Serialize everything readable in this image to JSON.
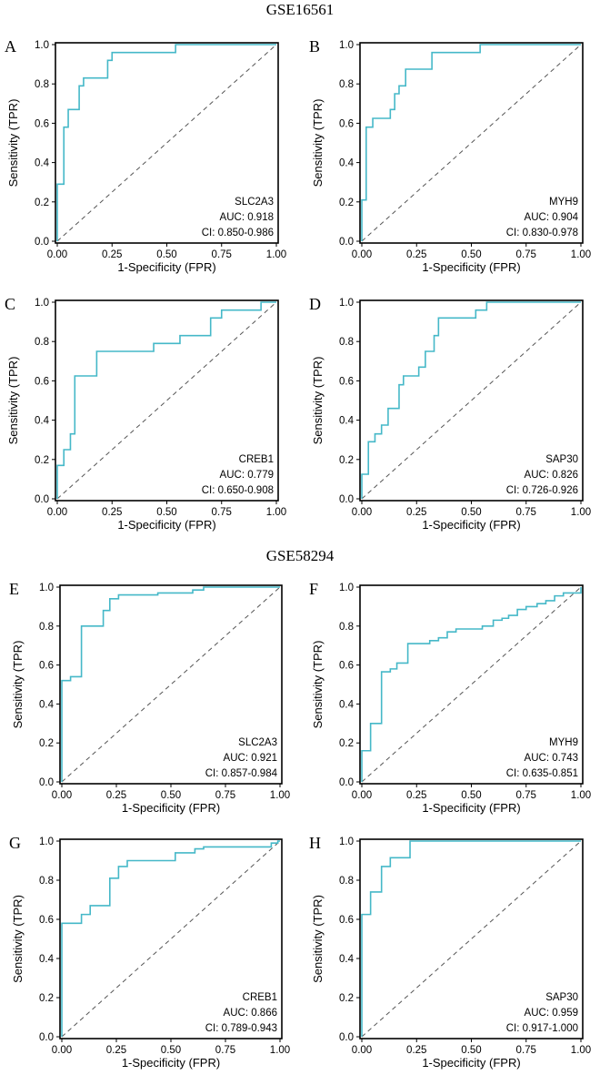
{
  "colors": {
    "curve": "#45b8c8",
    "diagonal": "#555555",
    "axis": "#000000"
  },
  "titles": [
    "GSE16561",
    "GSE58294"
  ],
  "chart_data": [
    {
      "type": "line",
      "panel": "A",
      "dataset": "GSE16561",
      "gene": "SLC2A3",
      "auc": "AUC: 0.918",
      "ci": "CI: 0.850-0.986",
      "xlabel": "1-Specificity (FPR)",
      "ylabel": "Sensitivity (TPR)",
      "xlim": [
        0,
        1
      ],
      "ylim": [
        0,
        1
      ],
      "xticks": [
        "0.00",
        "0.25",
        "0.50",
        "0.75",
        "1.00"
      ],
      "yticks": [
        "0.0",
        "0.2",
        "0.4",
        "0.6",
        "0.8",
        "1.0"
      ],
      "points": [
        [
          0,
          0
        ],
        [
          0,
          0.29
        ],
        [
          0.03,
          0.29
        ],
        [
          0.03,
          0.58
        ],
        [
          0.05,
          0.58
        ],
        [
          0.05,
          0.67
        ],
        [
          0.1,
          0.67
        ],
        [
          0.1,
          0.79
        ],
        [
          0.12,
          0.79
        ],
        [
          0.12,
          0.83
        ],
        [
          0.23,
          0.83
        ],
        [
          0.23,
          0.92
        ],
        [
          0.25,
          0.92
        ],
        [
          0.25,
          0.96
        ],
        [
          0.54,
          0.96
        ],
        [
          0.54,
          1
        ],
        [
          1,
          1
        ]
      ]
    },
    {
      "type": "line",
      "panel": "B",
      "dataset": "GSE16561",
      "gene": "MYH9",
      "auc": "AUC: 0.904",
      "ci": "CI: 0.830-0.978",
      "xlabel": "1-Specificity (FPR)",
      "ylabel": "Sensitivity (TPR)",
      "xlim": [
        0,
        1
      ],
      "ylim": [
        0,
        1
      ],
      "xticks": [
        "0.00",
        "0.25",
        "0.50",
        "0.75",
        "1.00"
      ],
      "yticks": [
        "0.0",
        "0.2",
        "0.4",
        "0.6",
        "0.8",
        "1.0"
      ],
      "points": [
        [
          0,
          0
        ],
        [
          0,
          0.21
        ],
        [
          0.02,
          0.21
        ],
        [
          0.02,
          0.58
        ],
        [
          0.05,
          0.58
        ],
        [
          0.05,
          0.625
        ],
        [
          0.13,
          0.625
        ],
        [
          0.13,
          0.67
        ],
        [
          0.15,
          0.67
        ],
        [
          0.15,
          0.75
        ],
        [
          0.17,
          0.75
        ],
        [
          0.17,
          0.79
        ],
        [
          0.2,
          0.79
        ],
        [
          0.2,
          0.875
        ],
        [
          0.32,
          0.875
        ],
        [
          0.32,
          0.96
        ],
        [
          0.54,
          0.96
        ],
        [
          0.54,
          1
        ],
        [
          1,
          1
        ]
      ]
    },
    {
      "type": "line",
      "panel": "C",
      "dataset": "GSE16561",
      "gene": "CREB1",
      "auc": "AUC: 0.779",
      "ci": "CI: 0.650-0.908",
      "xlabel": "1-Specificity (FPR)",
      "ylabel": "Sensitivity (TPR)",
      "xlim": [
        0,
        1
      ],
      "ylim": [
        0,
        1
      ],
      "xticks": [
        "0.00",
        "0.25",
        "0.50",
        "0.75",
        "1.00"
      ],
      "yticks": [
        "0.0",
        "0.2",
        "0.4",
        "0.6",
        "0.8",
        "1.0"
      ],
      "points": [
        [
          0,
          0
        ],
        [
          0,
          0.17
        ],
        [
          0.03,
          0.17
        ],
        [
          0.03,
          0.25
        ],
        [
          0.06,
          0.25
        ],
        [
          0.06,
          0.33
        ],
        [
          0.08,
          0.33
        ],
        [
          0.08,
          0.625
        ],
        [
          0.18,
          0.625
        ],
        [
          0.18,
          0.75
        ],
        [
          0.44,
          0.75
        ],
        [
          0.44,
          0.79
        ],
        [
          0.56,
          0.79
        ],
        [
          0.56,
          0.83
        ],
        [
          0.7,
          0.83
        ],
        [
          0.7,
          0.92
        ],
        [
          0.75,
          0.92
        ],
        [
          0.75,
          0.96
        ],
        [
          0.93,
          0.96
        ],
        [
          0.93,
          1
        ],
        [
          1,
          1
        ]
      ]
    },
    {
      "type": "line",
      "panel": "D",
      "dataset": "GSE16561",
      "gene": "SAP30",
      "auc": "AUC: 0.826",
      "ci": "CI: 0.726-0.926",
      "xlabel": "1-Specificity (FPR)",
      "ylabel": "Sensitivity (TPR)",
      "xlim": [
        0,
        1
      ],
      "ylim": [
        0,
        1
      ],
      "xticks": [
        "0.00",
        "0.25",
        "0.50",
        "0.75",
        "1.00"
      ],
      "yticks": [
        "0.0",
        "0.2",
        "0.4",
        "0.6",
        "0.8",
        "1.0"
      ],
      "points": [
        [
          0,
          0
        ],
        [
          0,
          0.125
        ],
        [
          0.03,
          0.125
        ],
        [
          0.03,
          0.29
        ],
        [
          0.06,
          0.29
        ],
        [
          0.06,
          0.33
        ],
        [
          0.09,
          0.33
        ],
        [
          0.09,
          0.375
        ],
        [
          0.12,
          0.375
        ],
        [
          0.12,
          0.46
        ],
        [
          0.17,
          0.46
        ],
        [
          0.17,
          0.58
        ],
        [
          0.19,
          0.58
        ],
        [
          0.19,
          0.625
        ],
        [
          0.26,
          0.625
        ],
        [
          0.26,
          0.67
        ],
        [
          0.29,
          0.67
        ],
        [
          0.29,
          0.75
        ],
        [
          0.33,
          0.75
        ],
        [
          0.33,
          0.83
        ],
        [
          0.35,
          0.83
        ],
        [
          0.35,
          0.92
        ],
        [
          0.52,
          0.92
        ],
        [
          0.52,
          0.96
        ],
        [
          0.57,
          0.96
        ],
        [
          0.57,
          1
        ],
        [
          1,
          1
        ]
      ]
    },
    {
      "type": "line",
      "panel": "E",
      "dataset": "GSE58294",
      "gene": "SLC2A3",
      "auc": "AUC: 0.921",
      "ci": "CI: 0.857-0.984",
      "xlabel": "1-Specificity (FPR)",
      "ylabel": "Sensitivity (TPR)",
      "xlim": [
        0,
        1
      ],
      "ylim": [
        0,
        1
      ],
      "xticks": [
        "0.00",
        "0.25",
        "0.50",
        "0.75",
        "1.00"
      ],
      "yticks": [
        "0.0",
        "0.2",
        "0.4",
        "0.6",
        "0.8",
        "1.0"
      ],
      "points": [
        [
          0,
          0
        ],
        [
          0,
          0.52
        ],
        [
          0.04,
          0.52
        ],
        [
          0.04,
          0.54
        ],
        [
          0.09,
          0.54
        ],
        [
          0.09,
          0.8
        ],
        [
          0.19,
          0.8
        ],
        [
          0.19,
          0.88
        ],
        [
          0.22,
          0.88
        ],
        [
          0.22,
          0.94
        ],
        [
          0.26,
          0.94
        ],
        [
          0.26,
          0.96
        ],
        [
          0.44,
          0.96
        ],
        [
          0.44,
          0.97
        ],
        [
          0.6,
          0.97
        ],
        [
          0.6,
          0.985
        ],
        [
          0.65,
          0.985
        ],
        [
          0.65,
          1
        ],
        [
          1,
          1
        ]
      ]
    },
    {
      "type": "line",
      "panel": "F",
      "dataset": "GSE58294",
      "gene": "MYH9",
      "auc": "AUC: 0.743",
      "ci": "CI: 0.635-0.851",
      "xlabel": "1-Specificity (FPR)",
      "ylabel": "Sensitivity (TPR)",
      "xlim": [
        0,
        1
      ],
      "ylim": [
        0,
        1
      ],
      "xticks": [
        "0.00",
        "0.25",
        "0.50",
        "0.75",
        "1.00"
      ],
      "yticks": [
        "0.0",
        "0.2",
        "0.4",
        "0.6",
        "0.8",
        "1.0"
      ],
      "points": [
        [
          0,
          0
        ],
        [
          0,
          0.16
        ],
        [
          0.04,
          0.16
        ],
        [
          0.04,
          0.3
        ],
        [
          0.09,
          0.3
        ],
        [
          0.09,
          0.565
        ],
        [
          0.13,
          0.565
        ],
        [
          0.13,
          0.58
        ],
        [
          0.16,
          0.58
        ],
        [
          0.16,
          0.61
        ],
        [
          0.21,
          0.61
        ],
        [
          0.21,
          0.71
        ],
        [
          0.31,
          0.71
        ],
        [
          0.31,
          0.725
        ],
        [
          0.35,
          0.725
        ],
        [
          0.35,
          0.74
        ],
        [
          0.39,
          0.74
        ],
        [
          0.39,
          0.77
        ],
        [
          0.43,
          0.77
        ],
        [
          0.43,
          0.785
        ],
        [
          0.55,
          0.785
        ],
        [
          0.55,
          0.8
        ],
        [
          0.6,
          0.8
        ],
        [
          0.6,
          0.83
        ],
        [
          0.64,
          0.83
        ],
        [
          0.64,
          0.84
        ],
        [
          0.67,
          0.84
        ],
        [
          0.67,
          0.855
        ],
        [
          0.71,
          0.855
        ],
        [
          0.71,
          0.885
        ],
        [
          0.75,
          0.885
        ],
        [
          0.75,
          0.9
        ],
        [
          0.8,
          0.9
        ],
        [
          0.8,
          0.915
        ],
        [
          0.84,
          0.915
        ],
        [
          0.84,
          0.93
        ],
        [
          0.88,
          0.93
        ],
        [
          0.88,
          0.955
        ],
        [
          0.92,
          0.955
        ],
        [
          0.92,
          0.97
        ],
        [
          1,
          0.97
        ],
        [
          1,
          1
        ]
      ]
    },
    {
      "type": "line",
      "panel": "G",
      "dataset": "GSE58294",
      "gene": "CREB1",
      "auc": "AUC: 0.866",
      "ci": "CI: 0.789-0.943",
      "xlabel": "1-Specificity (FPR)",
      "ylabel": "Sensitivity (TPR)",
      "xlim": [
        0,
        1
      ],
      "ylim": [
        0,
        1
      ],
      "xticks": [
        "0.00",
        "0.25",
        "0.50",
        "0.75",
        "1.00"
      ],
      "yticks": [
        "0.0",
        "0.2",
        "0.4",
        "0.6",
        "0.8",
        "1.0"
      ],
      "points": [
        [
          0,
          0
        ],
        [
          0,
          0.58
        ],
        [
          0.09,
          0.58
        ],
        [
          0.09,
          0.625
        ],
        [
          0.13,
          0.625
        ],
        [
          0.13,
          0.67
        ],
        [
          0.22,
          0.67
        ],
        [
          0.22,
          0.81
        ],
        [
          0.26,
          0.81
        ],
        [
          0.26,
          0.87
        ],
        [
          0.3,
          0.87
        ],
        [
          0.3,
          0.9
        ],
        [
          0.52,
          0.9
        ],
        [
          0.52,
          0.94
        ],
        [
          0.61,
          0.94
        ],
        [
          0.61,
          0.96
        ],
        [
          0.65,
          0.96
        ],
        [
          0.65,
          0.97
        ],
        [
          0.96,
          0.97
        ],
        [
          0.96,
          0.99
        ],
        [
          0.99,
          0.99
        ],
        [
          0.99,
          1
        ],
        [
          1,
          1
        ]
      ]
    },
    {
      "type": "line",
      "panel": "H",
      "dataset": "GSE58294",
      "gene": "SAP30",
      "auc": "AUC: 0.959",
      "ci": "CI: 0.917-1.000",
      "xlabel": "1-Specificity (FPR)",
      "ylabel": "Sensitivity (TPR)",
      "xlim": [
        0,
        1
      ],
      "ylim": [
        0,
        1
      ],
      "xticks": [
        "0.00",
        "0.25",
        "0.50",
        "0.75",
        "1.00"
      ],
      "yticks": [
        "0.0",
        "0.2",
        "0.4",
        "0.6",
        "0.8",
        "1.0"
      ],
      "points": [
        [
          0,
          0
        ],
        [
          0,
          0.625
        ],
        [
          0.04,
          0.625
        ],
        [
          0.04,
          0.74
        ],
        [
          0.09,
          0.74
        ],
        [
          0.09,
          0.87
        ],
        [
          0.13,
          0.87
        ],
        [
          0.13,
          0.915
        ],
        [
          0.22,
          0.915
        ],
        [
          0.22,
          1
        ],
        [
          1,
          1
        ]
      ]
    }
  ]
}
